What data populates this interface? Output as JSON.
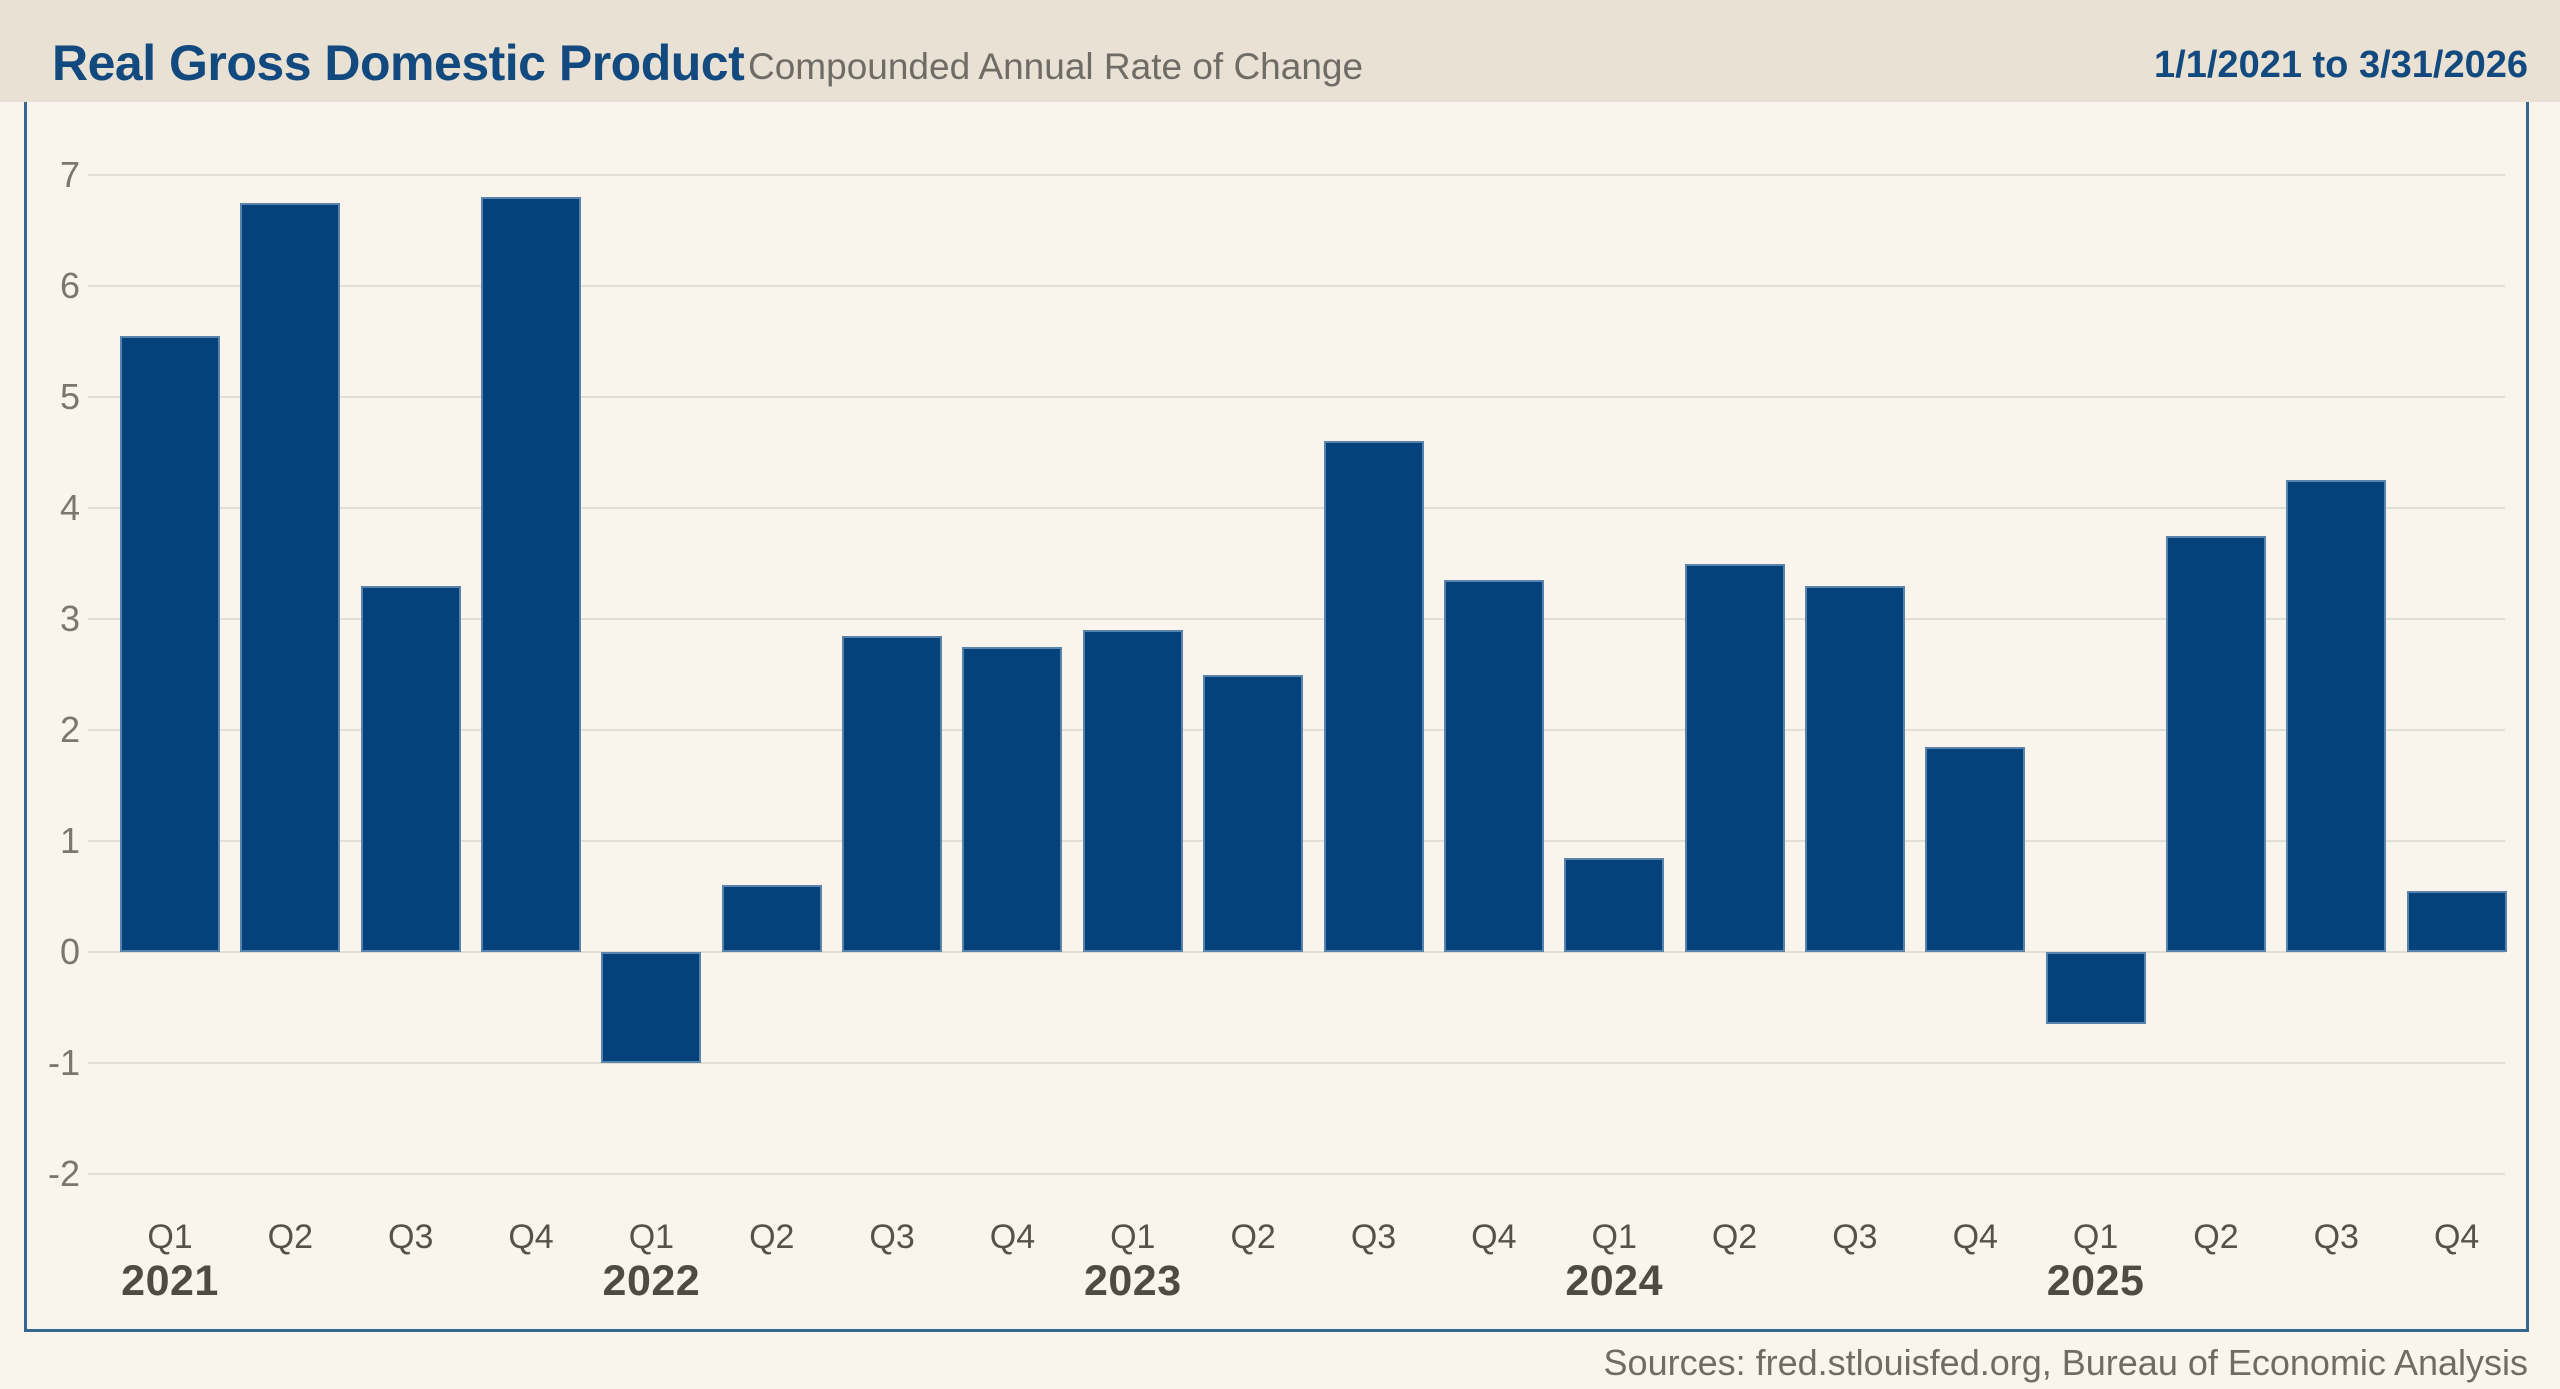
{
  "header": {
    "title": "Real Gross Domestic Product",
    "subtitle": "Compounded Annual Rate of Change",
    "date_range": "1/1/2021 to 3/31/2026"
  },
  "footer": {
    "source": "Sources: fred.stlouisfed.org, Bureau of Economic Analysis"
  },
  "chart_data": {
    "type": "bar",
    "title": "Real Gross Domestic Product",
    "subtitle": "Compounded Annual Rate of Change",
    "xlabel": "",
    "ylabel": "",
    "grid": true,
    "legend": false,
    "y_ticks": [
      7,
      6,
      5,
      4,
      3,
      2,
      1,
      0,
      -1,
      -2
    ],
    "ylim": [
      -2,
      7
    ],
    "years": [
      {
        "year": "2021",
        "quarters": [
          "Q1",
          "Q2",
          "Q3",
          "Q4"
        ],
        "values": [
          5.55,
          6.75,
          3.3,
          6.8
        ]
      },
      {
        "year": "2022",
        "quarters": [
          "Q1",
          "Q2",
          "Q3",
          "Q4"
        ],
        "values": [
          -1.0,
          0.6,
          2.85,
          2.75
        ]
      },
      {
        "year": "2023",
        "quarters": [
          "Q1",
          "Q2",
          "Q3",
          "Q4"
        ],
        "values": [
          2.9,
          2.5,
          4.6,
          3.35
        ]
      },
      {
        "year": "2024",
        "quarters": [
          "Q1",
          "Q2",
          "Q3",
          "Q4"
        ],
        "values": [
          0.85,
          3.5,
          3.3,
          1.85
        ]
      },
      {
        "year": "2025",
        "quarters": [
          "Q1",
          "Q2",
          "Q3",
          "Q4"
        ],
        "values": [
          -0.65,
          3.75,
          4.25,
          0.55
        ]
      }
    ]
  },
  "colors": {
    "bar": "#05427c",
    "title_blue": "#12497e",
    "frame_blue": "#35688f",
    "header_background": "#e9e1d3",
    "chart_background": "#faf5ec",
    "subtitle_gray": "#6f6c66"
  }
}
